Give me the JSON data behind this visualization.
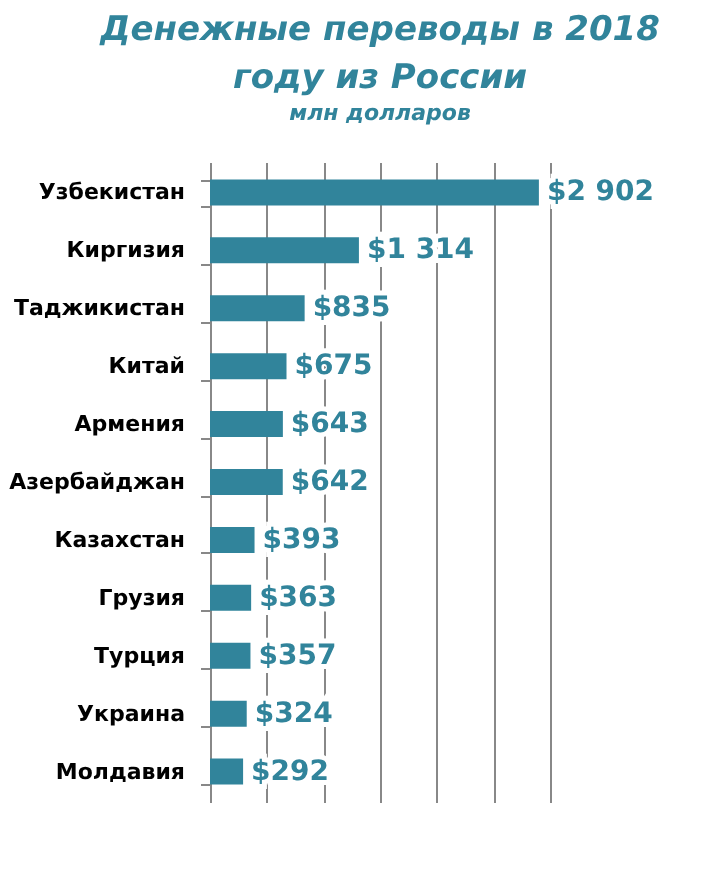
{
  "chart_data": {
    "type": "bar",
    "orientation": "horizontal",
    "title": "Денежные переводы в 2018 году из России",
    "subtitle": "млн долларов",
    "categories": [
      "Узбекистан",
      "Киргизия",
      "Таджикистан",
      "Китай",
      "Армения",
      "Азербайджан",
      "Казахстан",
      "Грузия",
      "Турция",
      "Украина",
      "Молдавия"
    ],
    "values": [
      2902,
      1314,
      835,
      675,
      643,
      642,
      393,
      363,
      357,
      324,
      292
    ],
    "value_labels": [
      "$2 902",
      "$1 314",
      "$835",
      "$675",
      "$643",
      "$642",
      "$393",
      "$363",
      "$357",
      "$324",
      "$292"
    ],
    "color": "#31849b",
    "grid": "x",
    "tick_labels": "y"
  }
}
